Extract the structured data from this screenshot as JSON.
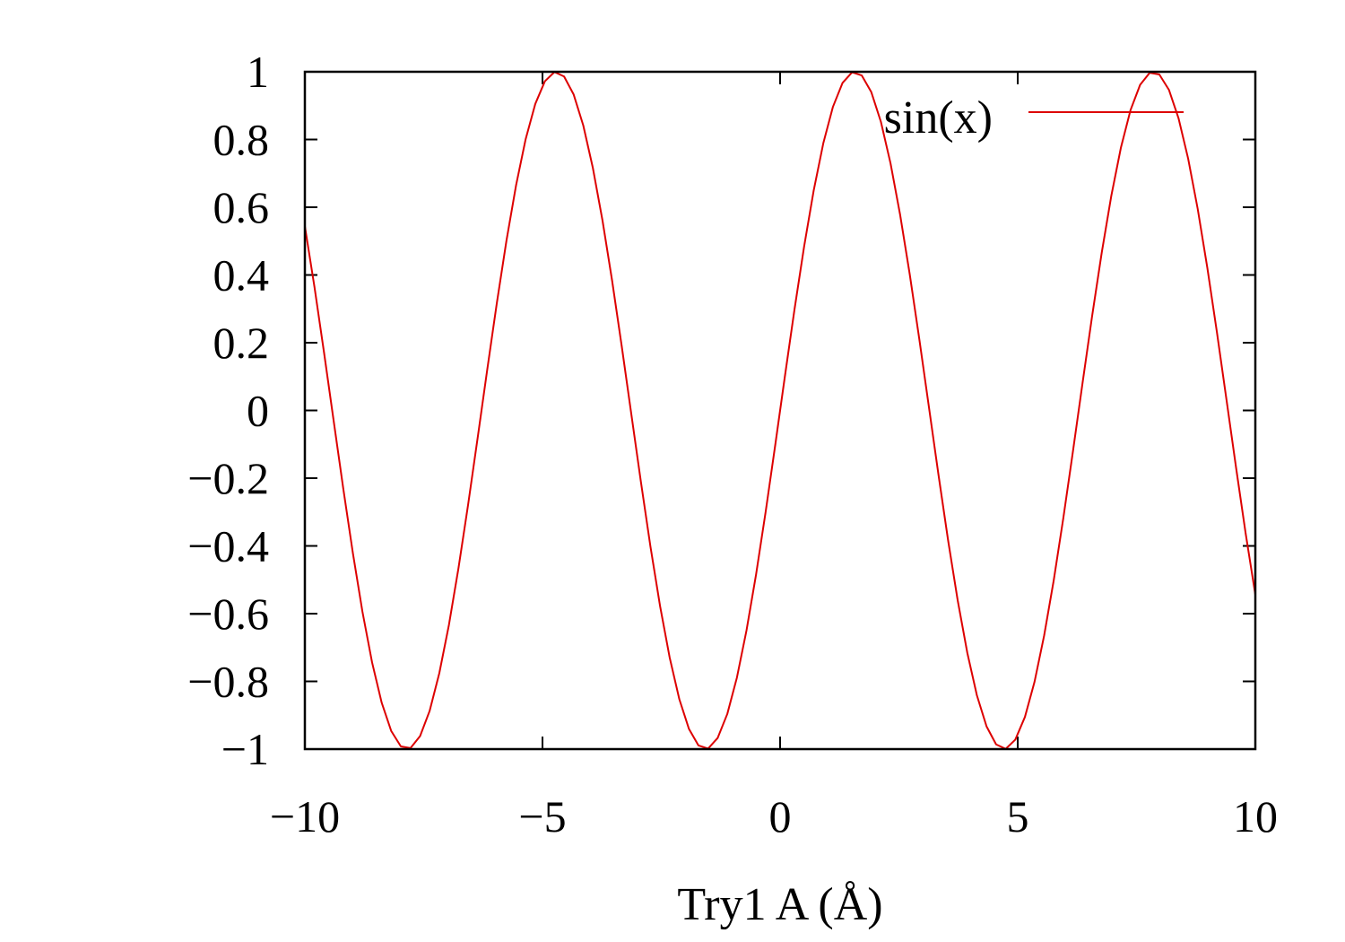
{
  "chart_data": {
    "type": "line",
    "title": "",
    "xlabel": "Try1  A  (Å)",
    "ylabel": "",
    "xlim": [
      -10,
      10
    ],
    "ylim": [
      -1,
      1
    ],
    "xticks": [
      -10,
      -5,
      0,
      5,
      10
    ],
    "xtick_labels": [
      "−10",
      "−5",
      "0",
      "5",
      "10"
    ],
    "yticks": [
      1,
      0.8,
      0.6,
      0.4,
      0.2,
      0,
      -0.2,
      -0.4,
      -0.6,
      -0.8,
      -1
    ],
    "ytick_labels": [
      "1",
      "0.8",
      "0.6",
      "0.4",
      "0.2",
      "0",
      "−0.2",
      "−0.4",
      "−0.6",
      "−0.8",
      "−1"
    ],
    "grid": false,
    "legend_position": "top-right",
    "series": [
      {
        "name": "sin(x)",
        "color": "#dd0000",
        "function": "sin(x)",
        "samples": 100
      }
    ]
  }
}
